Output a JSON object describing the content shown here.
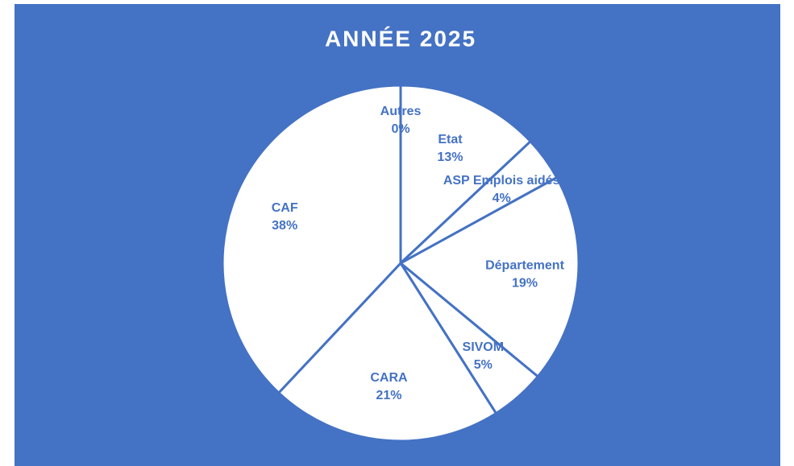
{
  "chart_data": {
    "type": "pie",
    "title": "ANNÉE 2025",
    "categories": [
      "Autres",
      "Etat",
      "ASP Emplois aidés",
      "Département",
      "SIVOM",
      "CARA",
      "CAF"
    ],
    "values": [
      0,
      13,
      4,
      19,
      5,
      21,
      38
    ],
    "value_labels": [
      "0%",
      "13%",
      "4%",
      "19%",
      "5%",
      "21%",
      "38%"
    ],
    "color": "#ffffff",
    "background": "#4472c4",
    "label_color": "#4472c4"
  }
}
